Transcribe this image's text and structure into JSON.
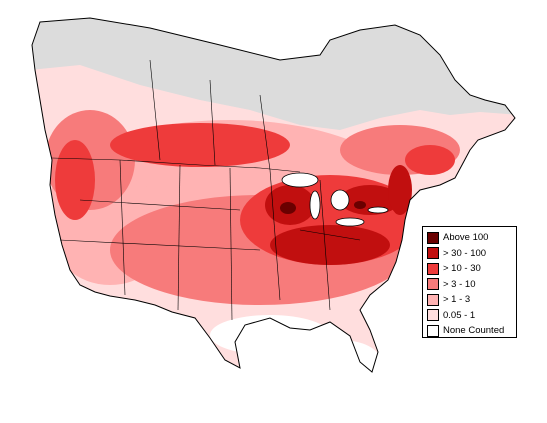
{
  "map": {
    "colors": {
      "none": "#dcdcdc",
      "c1": "#ffdede",
      "c2": "#ffb3b3",
      "c3": "#f77b7b",
      "c4": "#ee3b3b",
      "c5": "#c10f0f",
      "c6": "#6a0000"
    }
  },
  "legend": {
    "items": [
      {
        "label": "Above 100",
        "color": "#6a0000"
      },
      {
        "label": "> 30 - 100",
        "color": "#c10f0f"
      },
      {
        "label": "> 10 - 30",
        "color": "#ee3b3b"
      },
      {
        "label": "> 3 - 10",
        "color": "#f77b7b"
      },
      {
        "label": "> 1 - 3",
        "color": "#ffb3b3"
      },
      {
        "label": "0.05 - 1",
        "color": "#ffdede"
      },
      {
        "label": "None Counted",
        "color": "#ffffff"
      }
    ]
  }
}
